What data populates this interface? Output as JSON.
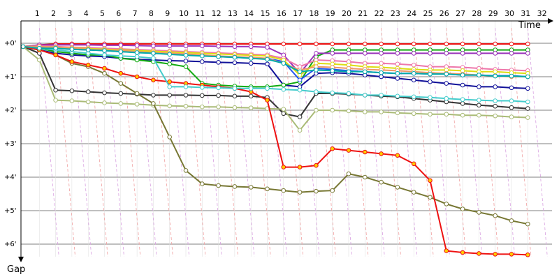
{
  "chart_data": {
    "type": "line",
    "xlabel": "Time",
    "ylabel": "Gap",
    "x_tick_labels": [
      "1",
      "2",
      "3",
      "4",
      "5",
      "6",
      "7",
      "8",
      "9",
      "10",
      "11",
      "12",
      "13",
      "14",
      "15",
      "16",
      "17",
      "18",
      "19",
      "20",
      "21",
      "22",
      "23",
      "24",
      "25",
      "26",
      "27",
      "28",
      "29",
      "30",
      "31",
      "32"
    ],
    "y_tick_labels": [
      "+0'",
      "+1'",
      "+2'",
      "+3'",
      "+4'",
      "+5'",
      "+6'"
    ],
    "ylim": [
      0,
      6.9
    ],
    "grid": true,
    "series": [
      {
        "color": "#ee1111",
        "values": [
          0.1,
          0.05,
          0.02,
          0.02,
          0.02,
          0.02,
          0.02,
          0.02,
          0.02,
          0.02,
          0.02,
          0.02,
          0.02,
          0.02,
          0.02,
          0.02,
          0.02,
          0.02,
          0.02,
          0.02,
          0.02,
          0.02,
          0.02,
          0.02,
          0.02,
          0.02,
          0.02,
          0.02,
          0.02,
          0.02,
          0.02,
          0.02
        ]
      },
      {
        "color": "#111199",
        "values": [
          0.1,
          0.2,
          0.3,
          0.35,
          0.38,
          0.4,
          0.45,
          0.48,
          0.5,
          0.52,
          0.53,
          0.55,
          0.57,
          0.58,
          0.6,
          0.62,
          1.25,
          1.3,
          0.9,
          0.88,
          0.9,
          0.95,
          1.0,
          1.05,
          1.1,
          1.15,
          1.2,
          1.25,
          1.3,
          1.3,
          1.33,
          1.35
        ]
      },
      {
        "color": "#11aa11",
        "values": [
          0.1,
          0.15,
          0.25,
          0.3,
          0.35,
          0.35,
          0.45,
          0.5,
          0.55,
          0.62,
          0.7,
          1.2,
          1.25,
          1.28,
          1.3,
          1.3,
          1.25,
          1.15,
          0.4,
          0.2,
          0.2,
          0.2,
          0.2,
          0.2,
          0.2,
          0.2,
          0.2,
          0.2,
          0.2,
          0.2,
          0.2,
          0.2
        ]
      },
      {
        "color": "#333333",
        "values": [
          0.1,
          0.3,
          1.4,
          1.42,
          1.45,
          1.48,
          1.5,
          1.52,
          1.55,
          1.55,
          1.55,
          1.56,
          1.56,
          1.58,
          1.58,
          1.62,
          2.1,
          2.2,
          1.5,
          1.5,
          1.52,
          1.55,
          1.58,
          1.6,
          1.65,
          1.7,
          1.75,
          1.8,
          1.85,
          1.88,
          1.92,
          1.95
        ]
      },
      {
        "color": "#aabb77",
        "values": [
          0.1,
          0.5,
          1.7,
          1.72,
          1.75,
          1.78,
          1.8,
          1.82,
          1.85,
          1.87,
          1.88,
          1.9,
          1.9,
          1.92,
          1.93,
          1.95,
          1.97,
          2.6,
          2.0,
          2.0,
          2.02,
          2.05,
          2.05,
          2.08,
          2.1,
          2.12,
          2.12,
          2.15,
          2.15,
          2.17,
          2.2,
          2.22
        ]
      },
      {
        "color": "#777733",
        "values": [
          0.1,
          0.2,
          0.35,
          0.6,
          0.7,
          0.9,
          1.2,
          1.5,
          1.8,
          2.8,
          3.8,
          4.2,
          4.25,
          4.28,
          4.3,
          4.35,
          4.4,
          4.45,
          4.42,
          4.4,
          3.9,
          4.0,
          4.15,
          4.3,
          4.45,
          4.6,
          4.8,
          4.95,
          5.05,
          5.15,
          5.3,
          5.4
        ]
      },
      {
        "color": "#ee1111",
        "dots": "#ffcc00",
        "values": [
          0.1,
          0.2,
          0.35,
          0.55,
          0.65,
          0.75,
          0.9,
          1.0,
          1.1,
          1.15,
          1.2,
          1.25,
          1.3,
          1.35,
          1.45,
          1.7,
          3.7,
          3.7,
          3.65,
          3.15,
          3.2,
          3.25,
          3.3,
          3.35,
          3.6,
          4.1,
          6.2,
          6.25,
          6.28,
          6.3,
          6.3,
          6.32
        ]
      },
      {
        "color": "#44cccc",
        "values": [
          0.1,
          0.15,
          0.2,
          0.25,
          0.3,
          0.35,
          0.38,
          0.4,
          0.45,
          1.3,
          1.3,
          1.32,
          1.33,
          1.35,
          1.35,
          1.35,
          1.38,
          1.4,
          1.45,
          1.48,
          1.5,
          1.55,
          1.55,
          1.58,
          1.6,
          1.62,
          1.65,
          1.68,
          1.7,
          1.72,
          1.72,
          1.75
        ]
      },
      {
        "color": "#9933bb",
        "values": [
          0.1,
          0.05,
          0.05,
          0.05,
          0.05,
          0.06,
          0.06,
          0.07,
          0.08,
          0.08,
          0.08,
          0.08,
          0.09,
          0.1,
          0.1,
          0.12,
          0.35,
          0.9,
          0.3,
          0.3,
          0.3,
          0.3,
          0.3,
          0.3,
          0.3,
          0.3,
          0.3,
          0.3,
          0.3,
          0.3,
          0.3,
          0.3
        ]
      },
      {
        "color": "#ee77aa",
        "values": [
          0.1,
          0.08,
          0.1,
          0.12,
          0.13,
          0.15,
          0.17,
          0.19,
          0.21,
          0.23,
          0.25,
          0.27,
          0.29,
          0.31,
          0.33,
          0.35,
          0.45,
          0.7,
          0.5,
          0.52,
          0.55,
          0.6,
          0.6,
          0.62,
          0.65,
          0.7,
          0.7,
          0.72,
          0.75,
          0.78,
          0.8,
          0.82
        ]
      },
      {
        "color": "#2255ee",
        "values": [
          0.1,
          0.12,
          0.15,
          0.18,
          0.2,
          0.22,
          0.25,
          0.27,
          0.3,
          0.32,
          0.35,
          0.37,
          0.4,
          0.42,
          0.44,
          0.45,
          0.55,
          1.1,
          0.75,
          0.78,
          0.82,
          0.85,
          0.88,
          0.9,
          0.9,
          0.92,
          0.92,
          0.95,
          0.95,
          0.97,
          0.97,
          1.0
        ]
      },
      {
        "color": "#dddd11",
        "values": [
          0.1,
          0.1,
          0.12,
          0.14,
          0.16,
          0.18,
          0.2,
          0.22,
          0.24,
          0.26,
          0.28,
          0.3,
          0.32,
          0.34,
          0.36,
          0.38,
          0.5,
          0.95,
          0.6,
          0.62,
          0.65,
          0.7,
          0.72,
          0.75,
          0.78,
          0.8,
          0.8,
          0.82,
          0.85,
          0.85,
          0.88,
          0.9
        ]
      },
      {
        "color": "#ee9966",
        "values": [
          0.1,
          0.1,
          0.13,
          0.15,
          0.18,
          0.2,
          0.22,
          0.25,
          0.28,
          0.3,
          0.32,
          0.35,
          0.38,
          0.4,
          0.42,
          0.45,
          0.6,
          0.8,
          0.7,
          0.72,
          0.75,
          0.78,
          0.8,
          0.82,
          0.85,
          0.88,
          0.9,
          0.92,
          0.95,
          0.98,
          1.0,
          1.0
        ]
      },
      {
        "color": "#00aaaa",
        "values": [
          0.1,
          0.15,
          0.15,
          0.18,
          0.2,
          0.22,
          0.25,
          0.28,
          0.3,
          0.33,
          0.36,
          0.38,
          0.4,
          0.42,
          0.45,
          0.48,
          0.6,
          0.85,
          0.8,
          0.82,
          0.85,
          0.85,
          0.88,
          0.9,
          0.9,
          0.92,
          0.92,
          0.95,
          0.95,
          0.98,
          0.98,
          1.0
        ]
      }
    ]
  }
}
